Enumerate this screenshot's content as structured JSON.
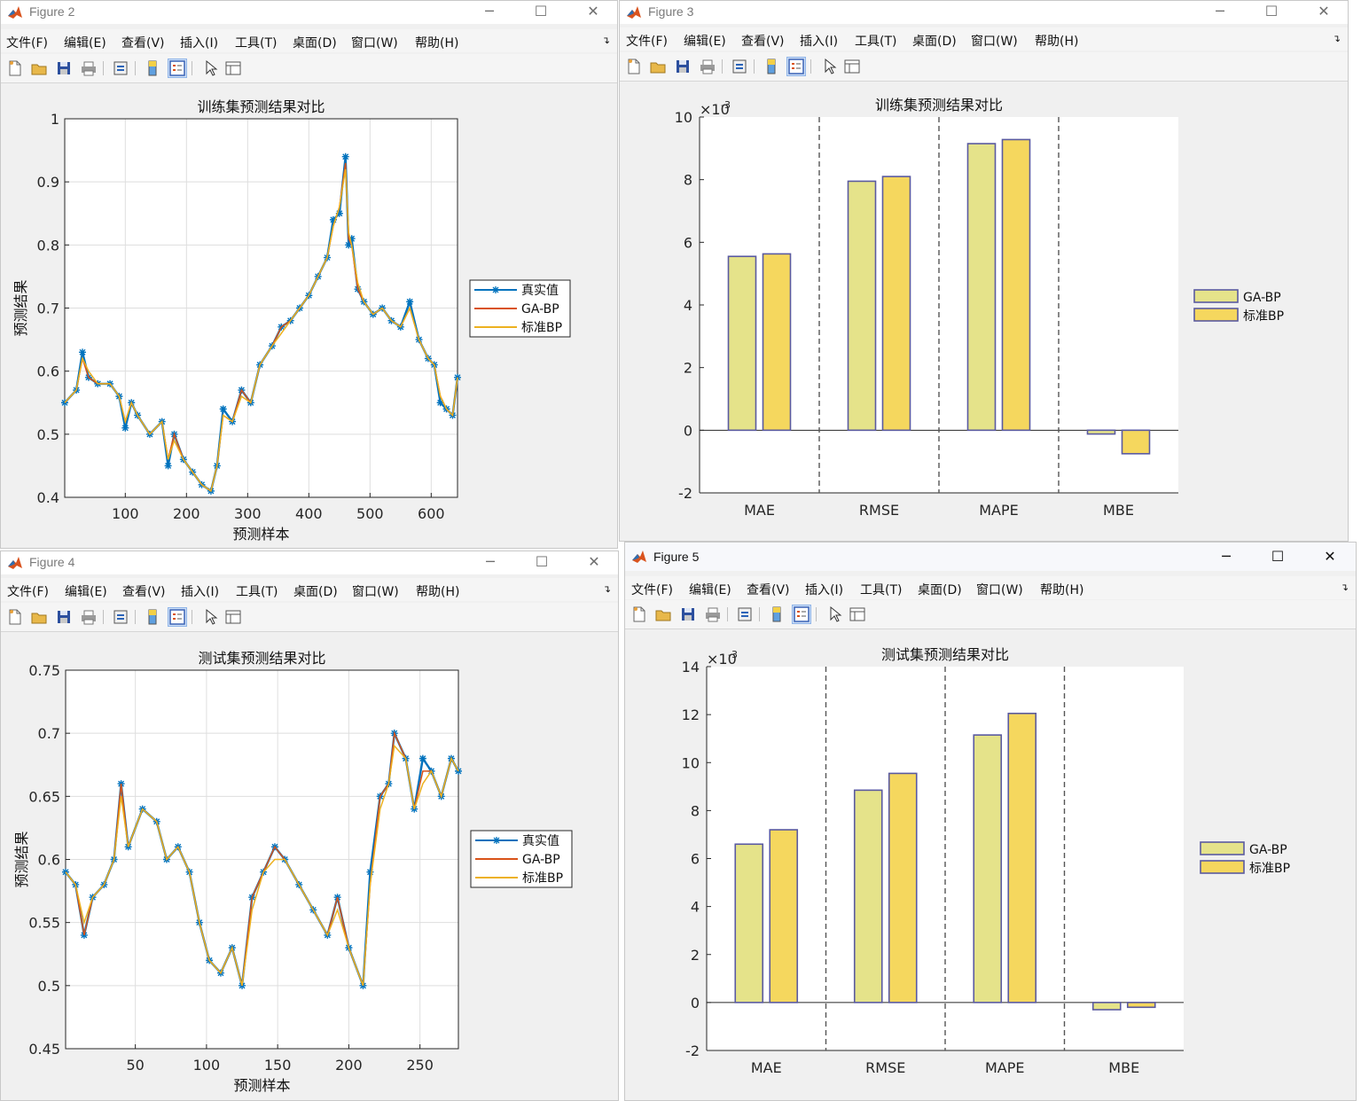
{
  "menu": [
    "文件(F)",
    "编辑(E)",
    "查看(V)",
    "插入(I)",
    "工具(T)",
    "桌面(D)",
    "窗口(W)",
    "帮助(H)"
  ],
  "window_buttons": {
    "minimize": "─",
    "maximize": "☐",
    "close": "✕"
  },
  "colors": {
    "true_value": "#0072bd",
    "ga_bp": "#d95319",
    "standard_bp": "#edb120",
    "bar_ga": "#e5e38a",
    "bar_std": "#f5d75e",
    "bar_edge": "#5a5aa0"
  },
  "toolbar_icons": [
    "new-file-icon",
    "open-folder-icon",
    "save-icon",
    "print-icon",
    "link-icon",
    "colorbar-icon",
    "legend-icon",
    "pointer-icon",
    "property-inspector-icon"
  ],
  "windows": {
    "fig2": {
      "title": "Figure 2",
      "chart_data": {
        "type": "line",
        "title": "训练集预测结果对比",
        "xlabel": "预测样本",
        "ylabel": "预测结果",
        "xlim": [
          1,
          643
        ],
        "ylim": [
          0.4,
          1
        ],
        "xticks": [
          "100",
          "200",
          "300",
          "400",
          "500",
          "600"
        ],
        "yticks": [
          "0.4",
          "0.5",
          "0.6",
          "0.7",
          "0.8",
          "0.9",
          "1"
        ],
        "grid": true,
        "legend_position": "outside-right",
        "legend": [
          "真实值",
          "GA-BP",
          "标准BP"
        ],
        "x": [
          1,
          20,
          30,
          40,
          55,
          75,
          90,
          100,
          110,
          120,
          140,
          160,
          170,
          180,
          195,
          210,
          225,
          240,
          250,
          260,
          275,
          290,
          305,
          320,
          340,
          355,
          370,
          385,
          400,
          415,
          430,
          440,
          450,
          460,
          465,
          470,
          480,
          490,
          505,
          520,
          535,
          550,
          565,
          580,
          595,
          605,
          615,
          625,
          635,
          643
        ],
        "series": [
          {
            "name": "真实值",
            "values": [
              0.55,
              0.57,
              0.63,
              0.59,
              0.58,
              0.58,
              0.56,
              0.51,
              0.55,
              0.53,
              0.5,
              0.52,
              0.45,
              0.5,
              0.46,
              0.44,
              0.42,
              0.41,
              0.45,
              0.54,
              0.52,
              0.57,
              0.55,
              0.61,
              0.64,
              0.67,
              0.68,
              0.7,
              0.72,
              0.75,
              0.78,
              0.84,
              0.85,
              0.94,
              0.8,
              0.81,
              0.73,
              0.71,
              0.69,
              0.7,
              0.68,
              0.67,
              0.71,
              0.65,
              0.62,
              0.61,
              0.55,
              0.54,
              0.53,
              0.59
            ]
          },
          {
            "name": "GA-BP",
            "values": [
              0.55,
              0.57,
              0.62,
              0.59,
              0.58,
              0.58,
              0.56,
              0.52,
              0.55,
              0.53,
              0.5,
              0.52,
              0.46,
              0.5,
              0.46,
              0.44,
              0.42,
              0.41,
              0.45,
              0.53,
              0.52,
              0.57,
              0.55,
              0.61,
              0.64,
              0.67,
              0.68,
              0.7,
              0.72,
              0.75,
              0.78,
              0.83,
              0.86,
              0.93,
              0.81,
              0.8,
              0.73,
              0.71,
              0.69,
              0.7,
              0.68,
              0.67,
              0.7,
              0.65,
              0.62,
              0.61,
              0.56,
              0.54,
              0.53,
              0.59
            ]
          },
          {
            "name": "标准BP",
            "values": [
              0.55,
              0.57,
              0.62,
              0.6,
              0.58,
              0.58,
              0.56,
              0.52,
              0.55,
              0.53,
              0.5,
              0.52,
              0.46,
              0.49,
              0.46,
              0.44,
              0.42,
              0.41,
              0.45,
              0.53,
              0.52,
              0.56,
              0.55,
              0.61,
              0.64,
              0.66,
              0.68,
              0.7,
              0.72,
              0.75,
              0.78,
              0.83,
              0.86,
              0.92,
              0.82,
              0.8,
              0.74,
              0.71,
              0.69,
              0.7,
              0.68,
              0.67,
              0.7,
              0.65,
              0.62,
              0.61,
              0.56,
              0.54,
              0.53,
              0.59
            ]
          }
        ]
      }
    },
    "fig3": {
      "title": "Figure 3",
      "chart_data": {
        "type": "bar",
        "title": "训练集预测结果对比",
        "categories": [
          "MAE",
          "RMSE",
          "MAPE",
          "MBE"
        ],
        "ylim": [
          -2,
          10
        ],
        "yticks": [
          "-2",
          "0",
          "2",
          "4",
          "6",
          "8",
          "10"
        ],
        "scale_label": "×10",
        "scale_exponent": "-3",
        "legend_position": "outside-right",
        "legend": [
          "GA-BP",
          "标准BP"
        ],
        "series": [
          {
            "name": "GA-BP",
            "values": [
              5.55,
              7.95,
              9.15,
              -0.12
            ]
          },
          {
            "name": "标准BP",
            "values": [
              5.63,
              8.1,
              9.28,
              -0.75
            ]
          }
        ]
      }
    },
    "fig4": {
      "title": "Figure 4",
      "chart_data": {
        "type": "line",
        "title": "测试集预测结果对比",
        "xlabel": "预测样本",
        "ylabel": "预测结果",
        "xlim": [
          1,
          277
        ],
        "ylim": [
          0.45,
          0.75
        ],
        "xticks": [
          "50",
          "100",
          "150",
          "200",
          "250"
        ],
        "yticks": [
          "0.45",
          "0.5",
          "0.55",
          "0.6",
          "0.65",
          "0.7",
          "0.75"
        ],
        "grid": true,
        "legend_position": "outside-right",
        "legend": [
          "真实值",
          "GA-BP",
          "标准BP"
        ],
        "x": [
          1,
          8,
          14,
          20,
          28,
          35,
          40,
          45,
          55,
          65,
          72,
          80,
          88,
          95,
          102,
          110,
          118,
          125,
          132,
          140,
          148,
          155,
          165,
          175,
          185,
          192,
          200,
          210,
          215,
          222,
          228,
          232,
          240,
          246,
          252,
          258,
          265,
          272,
          277
        ],
        "series": [
          {
            "name": "真实值",
            "values": [
              0.59,
              0.58,
              0.54,
              0.57,
              0.58,
              0.6,
              0.66,
              0.61,
              0.64,
              0.63,
              0.6,
              0.61,
              0.59,
              0.55,
              0.52,
              0.51,
              0.53,
              0.5,
              0.57,
              0.59,
              0.61,
              0.6,
              0.58,
              0.56,
              0.54,
              0.57,
              0.53,
              0.5,
              0.59,
              0.65,
              0.66,
              0.7,
              0.68,
              0.64,
              0.68,
              0.67,
              0.65,
              0.68,
              0.67
            ]
          },
          {
            "name": "GA-BP",
            "values": [
              0.59,
              0.58,
              0.54,
              0.57,
              0.58,
              0.6,
              0.66,
              0.61,
              0.64,
              0.63,
              0.6,
              0.61,
              0.59,
              0.55,
              0.52,
              0.51,
              0.53,
              0.5,
              0.57,
              0.59,
              0.61,
              0.6,
              0.58,
              0.56,
              0.54,
              0.57,
              0.53,
              0.5,
              0.58,
              0.65,
              0.66,
              0.7,
              0.68,
              0.64,
              0.67,
              0.67,
              0.65,
              0.68,
              0.67
            ]
          },
          {
            "name": "标准BP",
            "values": [
              0.59,
              0.58,
              0.55,
              0.57,
              0.58,
              0.6,
              0.65,
              0.61,
              0.64,
              0.63,
              0.6,
              0.61,
              0.59,
              0.55,
              0.52,
              0.51,
              0.53,
              0.5,
              0.56,
              0.59,
              0.6,
              0.6,
              0.58,
              0.56,
              0.54,
              0.56,
              0.53,
              0.5,
              0.58,
              0.64,
              0.66,
              0.69,
              0.68,
              0.64,
              0.66,
              0.67,
              0.65,
              0.68,
              0.67
            ]
          }
        ]
      }
    },
    "fig5": {
      "title": "Figure 5",
      "chart_data": {
        "type": "bar",
        "title": "测试集预测结果对比",
        "categories": [
          "MAE",
          "RMSE",
          "MAPE",
          "MBE"
        ],
        "ylim": [
          -2,
          14
        ],
        "yticks": [
          "-2",
          "0",
          "2",
          "4",
          "6",
          "8",
          "10",
          "12",
          "14"
        ],
        "scale_label": "×10",
        "scale_exponent": "-3",
        "legend_position": "outside-right",
        "legend": [
          "GA-BP",
          "标准BP"
        ],
        "series": [
          {
            "name": "GA-BP",
            "values": [
              6.6,
              8.85,
              11.15,
              -0.3
            ]
          },
          {
            "name": "标准BP",
            "values": [
              7.2,
              9.55,
              12.05,
              -0.2
            ]
          }
        ]
      }
    }
  }
}
